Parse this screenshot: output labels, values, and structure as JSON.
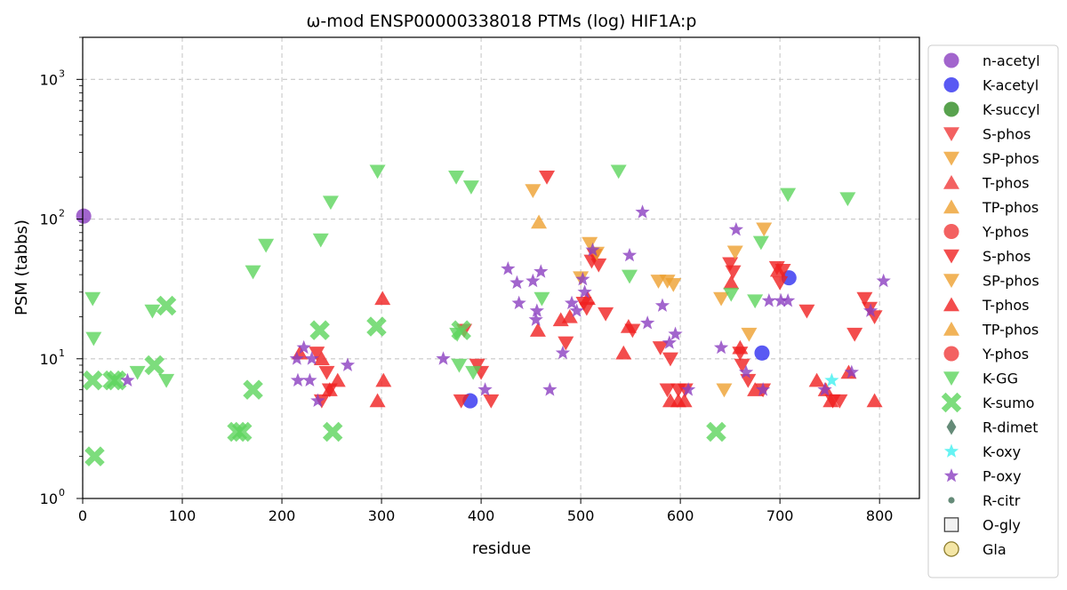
{
  "chart_data": {
    "type": "scatter",
    "title": "ω-mod ENSP00000338018 PTMs (log) HIF1A:p",
    "xlabel": "residue",
    "ylabel": "PSM (tabbs)",
    "xlim": [
      0,
      840
    ],
    "ylim": [
      1,
      2000
    ],
    "yscale": "log",
    "x_ticks": [
      0,
      100,
      200,
      300,
      400,
      500,
      600,
      700,
      800
    ],
    "y_ticks": [
      {
        "value": 1,
        "base": "10",
        "exp": "0"
      },
      {
        "value": 10,
        "base": "10",
        "exp": "1"
      },
      {
        "value": 100,
        "base": "10",
        "exp": "2"
      },
      {
        "value": 1000,
        "base": "10",
        "exp": "3"
      }
    ],
    "grid": true,
    "legend_position": "outside-right",
    "series": [
      {
        "name": "n-acetyl",
        "marker": "circle",
        "color": "#8b3fc0",
        "points": [
          [
            1,
            105
          ]
        ]
      },
      {
        "name": "K-acetyl",
        "marker": "circle",
        "color": "#3030f0",
        "points": [
          [
            389,
            5
          ],
          [
            682,
            11
          ],
          [
            709,
            38
          ]
        ]
      },
      {
        "name": "K-succyl",
        "marker": "circle",
        "color": "#2e8b22",
        "points": []
      },
      {
        "name": "S-phos",
        "marker": "triangle-down",
        "color": "#f03a3a",
        "points": []
      },
      {
        "name": "SP-phos",
        "marker": "triangle-down",
        "color": "#eea030",
        "points": []
      },
      {
        "name": "T-phos",
        "marker": "triangle-up",
        "color": "#f03a3a",
        "points": []
      },
      {
        "name": "TP-phos",
        "marker": "triangle-up",
        "color": "#eea030",
        "points": []
      },
      {
        "name": "Y-phos",
        "marker": "circle",
        "color": "#f03a3a",
        "points": []
      },
      {
        "name": "S-phos",
        "marker": "triangle-down",
        "color": "#f02020",
        "points": [
          [
            235,
            11
          ],
          [
            240,
            5
          ],
          [
            245,
            8
          ],
          [
            248,
            6
          ],
          [
            383,
            16
          ],
          [
            380,
            5
          ],
          [
            396,
            9
          ],
          [
            400,
            8
          ],
          [
            410,
            5
          ],
          [
            466,
            200
          ],
          [
            485,
            13
          ],
          [
            503,
            25
          ],
          [
            506,
            23
          ],
          [
            511,
            50
          ],
          [
            514,
            55
          ],
          [
            518,
            47
          ],
          [
            525,
            21
          ],
          [
            552,
            16
          ],
          [
            580,
            12
          ],
          [
            590,
            10
          ],
          [
            587,
            6
          ],
          [
            598,
            6
          ],
          [
            605,
            6
          ],
          [
            650,
            48
          ],
          [
            653,
            42
          ],
          [
            660,
            11
          ],
          [
            662,
            9
          ],
          [
            668,
            7
          ],
          [
            683,
            6
          ],
          [
            697,
            45
          ],
          [
            700,
            35
          ],
          [
            703,
            43
          ],
          [
            727,
            22
          ],
          [
            753,
            5
          ],
          [
            760,
            5
          ],
          [
            775,
            15
          ],
          [
            785,
            27
          ],
          [
            790,
            23
          ],
          [
            795,
            20
          ]
        ]
      },
      {
        "name": "SP-phos",
        "marker": "triangle-down",
        "color": "#eea030",
        "points": [
          [
            452,
            160
          ],
          [
            500,
            38
          ],
          [
            509,
            67
          ],
          [
            516,
            57
          ],
          [
            578,
            36
          ],
          [
            587,
            36
          ],
          [
            593,
            34
          ],
          [
            641,
            27
          ],
          [
            644,
            6
          ],
          [
            655,
            58
          ],
          [
            669,
            15
          ],
          [
            684,
            85
          ]
        ]
      },
      {
        "name": "T-phos",
        "marker": "triangle-up",
        "color": "#f02020",
        "points": [
          [
            218,
            11
          ],
          [
            240,
            10
          ],
          [
            248,
            6
          ],
          [
            256,
            7
          ],
          [
            296,
            5
          ],
          [
            301,
            27
          ],
          [
            302,
            7
          ],
          [
            457,
            16
          ],
          [
            480,
            19
          ],
          [
            489,
            20
          ],
          [
            507,
            27
          ],
          [
            543,
            11
          ],
          [
            548,
            17
          ],
          [
            590,
            5
          ],
          [
            598,
            5
          ],
          [
            604,
            5
          ],
          [
            651,
            35
          ],
          [
            660,
            12
          ],
          [
            675,
            6
          ],
          [
            698,
            43
          ],
          [
            737,
            7
          ],
          [
            746,
            6
          ],
          [
            751,
            5
          ],
          [
            769,
            8
          ],
          [
            795,
            5
          ]
        ]
      },
      {
        "name": "TP-phos",
        "marker": "triangle-up",
        "color": "#eea030",
        "points": [
          [
            458,
            95
          ]
        ]
      },
      {
        "name": "Y-phos",
        "marker": "circle",
        "color": "#f03a3a",
        "points": []
      },
      {
        "name": "K-GG",
        "marker": "triangle-down",
        "color": "#5dd55d",
        "points": [
          [
            10,
            27
          ],
          [
            11,
            14
          ],
          [
            55,
            8
          ],
          [
            70,
            22
          ],
          [
            84,
            7
          ],
          [
            171,
            42
          ],
          [
            184,
            65
          ],
          [
            249,
            132
          ],
          [
            239,
            71
          ],
          [
            296,
            220
          ],
          [
            375,
            200
          ],
          [
            376,
            15
          ],
          [
            390,
            170
          ],
          [
            378,
            9
          ],
          [
            392,
            8
          ],
          [
            461,
            27
          ],
          [
            538,
            220
          ],
          [
            549,
            39
          ],
          [
            651,
            29
          ],
          [
            675,
            26
          ],
          [
            681,
            68
          ],
          [
            708,
            150
          ],
          [
            768,
            140
          ]
        ]
      },
      {
        "name": "K-sumo",
        "marker": "x",
        "color": "#5dd55d",
        "points": [
          [
            10,
            7
          ],
          [
            12,
            2
          ],
          [
            30,
            7
          ],
          [
            34,
            7
          ],
          [
            72,
            9
          ],
          [
            84,
            24
          ],
          [
            155,
            3
          ],
          [
            160,
            3
          ],
          [
            171,
            6
          ],
          [
            238,
            16
          ],
          [
            251,
            3
          ],
          [
            295,
            17
          ],
          [
            380,
            16
          ],
          [
            636,
            3
          ]
        ]
      },
      {
        "name": "R-dimet",
        "marker": "diamond",
        "color": "#3e6e56",
        "points": []
      },
      {
        "name": "K-oxy",
        "marker": "star",
        "color": "#40f0f0",
        "points": [
          [
            752,
            7
          ]
        ]
      },
      {
        "name": "P-oxy",
        "marker": "star",
        "color": "#8b3fc0",
        "points": [
          [
            45,
            7
          ],
          [
            215,
            10
          ],
          [
            216,
            7
          ],
          [
            222,
            12
          ],
          [
            228,
            7
          ],
          [
            230,
            10
          ],
          [
            236,
            5
          ],
          [
            266,
            9
          ],
          [
            362,
            10
          ],
          [
            404,
            6
          ],
          [
            427,
            44
          ],
          [
            436,
            35
          ],
          [
            438,
            25
          ],
          [
            452,
            36
          ],
          [
            455,
            19
          ],
          [
            456,
            22
          ],
          [
            460,
            42
          ],
          [
            469,
            6
          ],
          [
            482,
            11
          ],
          [
            491,
            25
          ],
          [
            496,
            22
          ],
          [
            502,
            37
          ],
          [
            504,
            30
          ],
          [
            512,
            60
          ],
          [
            549,
            55
          ],
          [
            562,
            112
          ],
          [
            567,
            18
          ],
          [
            582,
            24
          ],
          [
            589,
            13
          ],
          [
            595,
            15
          ],
          [
            608,
            6
          ],
          [
            641,
            12
          ],
          [
            656,
            84
          ],
          [
            666,
            8
          ],
          [
            683,
            6
          ],
          [
            689,
            26
          ],
          [
            701,
            26
          ],
          [
            708,
            26
          ],
          [
            745,
            6
          ],
          [
            772,
            8
          ],
          [
            791,
            22
          ],
          [
            804,
            36
          ]
        ]
      },
      {
        "name": "R-citr",
        "marker": "dot",
        "color": "#3e6e56",
        "points": []
      },
      {
        "name": "O-gly",
        "marker": "square-open",
        "color": "#444444",
        "points": []
      },
      {
        "name": "Gla",
        "marker": "circle-open",
        "color": "#8a7a2a",
        "points": []
      }
    ]
  }
}
